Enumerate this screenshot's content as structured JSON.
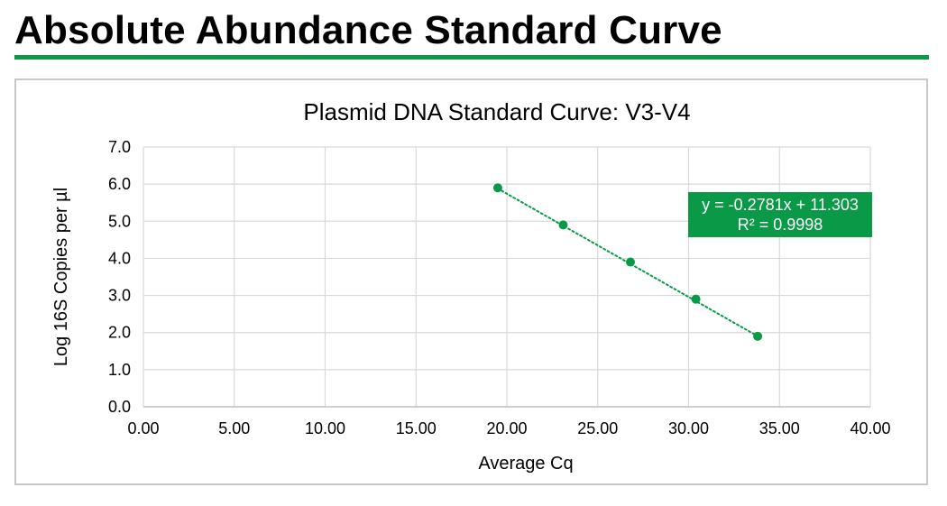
{
  "page": {
    "title": "Absolute Abundance Standard Curve",
    "accent_color": "#0a9a47"
  },
  "chart_data": {
    "type": "scatter",
    "title": "Plasmid DNA Standard Curve: V3-V4",
    "xlabel": "Average Cq",
    "ylabel": "Log 16S Copies per µl",
    "xlim": [
      0,
      40
    ],
    "ylim": [
      0,
      7
    ],
    "x_ticks": [
      "0.00",
      "5.00",
      "10.00",
      "15.00",
      "20.00",
      "25.00",
      "30.00",
      "35.00",
      "40.00"
    ],
    "y_ticks": [
      "0.0",
      "1.0",
      "2.0",
      "3.0",
      "4.0",
      "5.0",
      "6.0",
      "7.0"
    ],
    "grid": true,
    "series": [
      {
        "x": [
          19.5,
          23.1,
          26.8,
          30.4,
          33.8
        ],
        "y": [
          5.9,
          4.9,
          3.9,
          2.9,
          1.9
        ],
        "color": "#0a9a47",
        "marker": "circle"
      }
    ],
    "trendline": {
      "type": "linear",
      "slope": -0.2781,
      "intercept": 11.303,
      "style": "dotted",
      "color": "#0a9a47"
    },
    "annotation": {
      "line1": "y = -0.2781x + 11.303",
      "line2": "R² = 0.9998",
      "background": "#0a9a47",
      "position": "top-right"
    }
  }
}
